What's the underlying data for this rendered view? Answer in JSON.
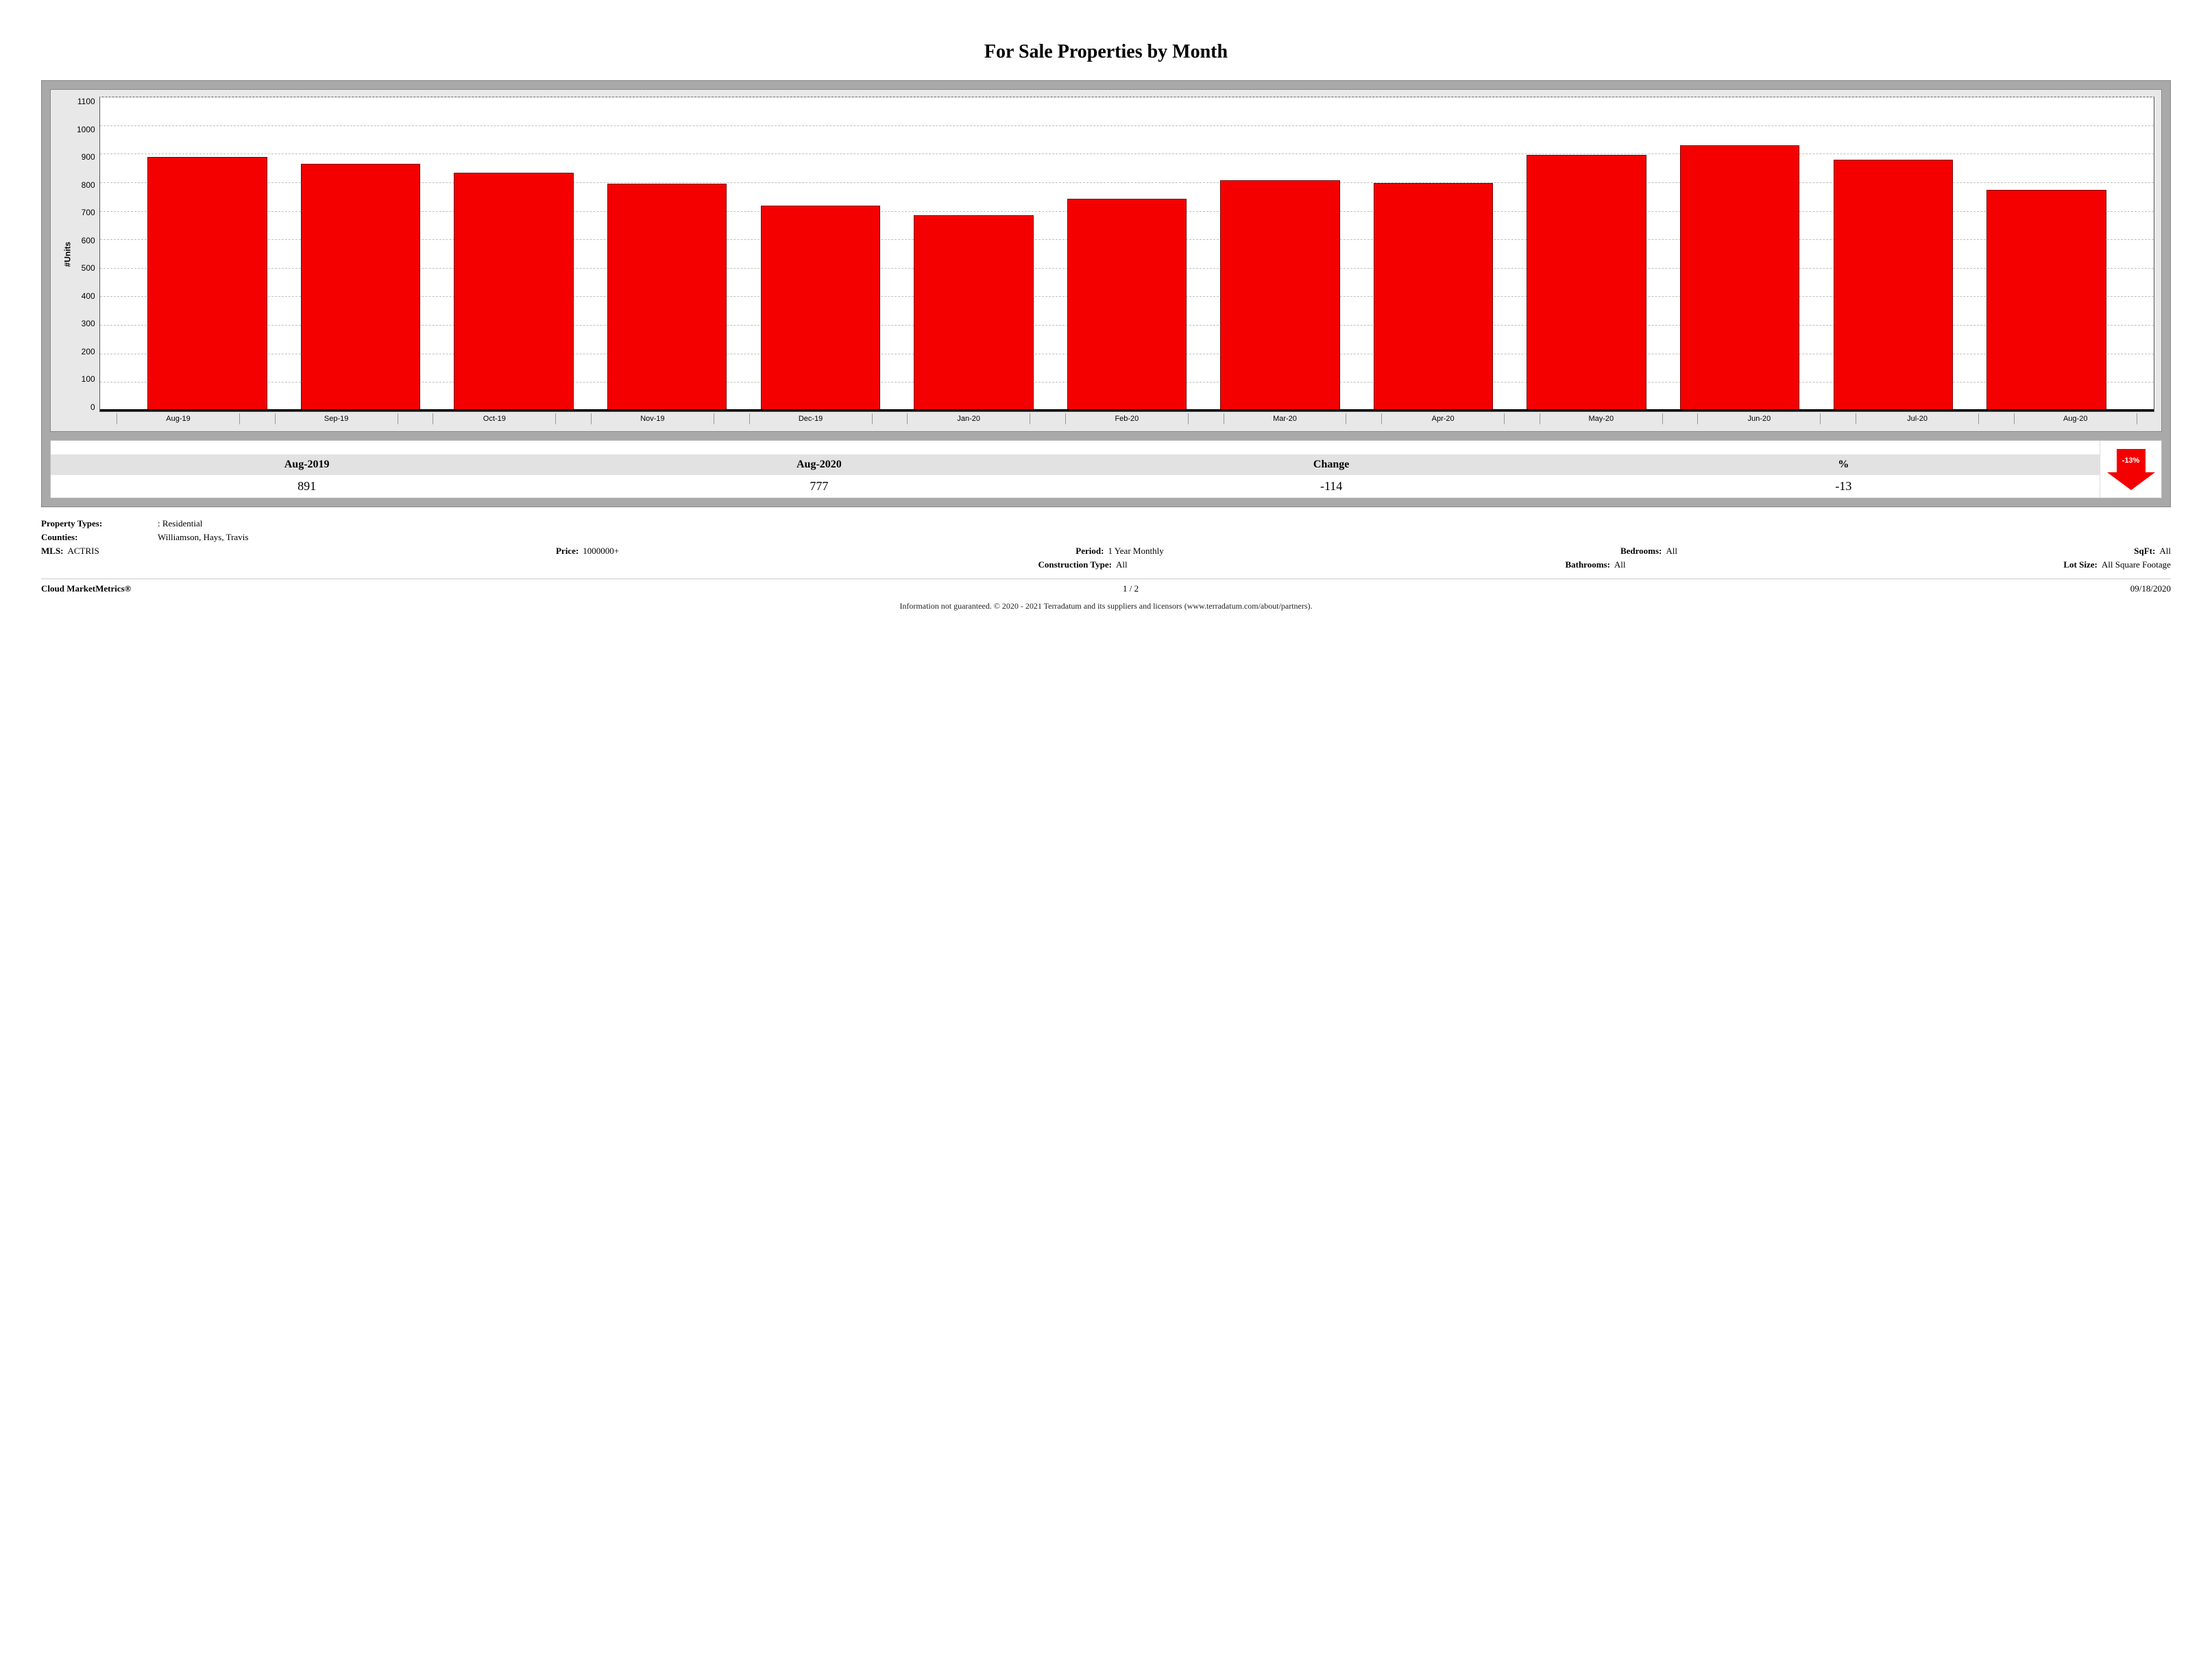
{
  "title": "For Sale Properties by Month",
  "chart": {
    "type": "bar",
    "ylabel": "#Units",
    "ylim": [
      0,
      1100
    ],
    "ytick_step": 100,
    "yticks": [
      1100,
      1000,
      900,
      800,
      700,
      600,
      500,
      400,
      300,
      200,
      100,
      0
    ],
    "categories": [
      "Aug-19",
      "Sep-19",
      "Oct-19",
      "Nov-19",
      "Dec-19",
      "Jan-20",
      "Feb-20",
      "Mar-20",
      "Apr-20",
      "May-20",
      "Jun-20",
      "Jul-20",
      "Aug-20"
    ],
    "values": [
      891,
      868,
      835,
      798,
      720,
      688,
      745,
      810,
      800,
      898,
      932,
      882,
      777
    ],
    "bar_color": "#f40000",
    "bar_border_color": "#7a0000",
    "bar_width": 0.78,
    "background_color": "#ffffff",
    "panel_background": "#e8e8e8",
    "outer_background": "#a9a9a9",
    "grid_color": "#bfbfbf",
    "grid_dashed": true,
    "label_fontsize": 12,
    "tick_fontsize": 11
  },
  "summary": {
    "headers": [
      "Aug-2019",
      "Aug-2020",
      "Change",
      "%"
    ],
    "values": [
      "891",
      "777",
      "-114",
      "-13"
    ],
    "arrow": {
      "direction": "down",
      "label": "-13%",
      "color": "#f40000"
    }
  },
  "filters": {
    "property_types_label": "Property Types:",
    "property_types": ": Residential",
    "counties_label": "Counties:",
    "counties": "Williamson, Hays, Travis",
    "mls_label": "MLS:",
    "mls": "ACTRIS",
    "price_label": "Price:",
    "price": "1000000+",
    "period_label": "Period:",
    "period": "1 Year Monthly",
    "bedrooms_label": "Bedrooms:",
    "bedrooms": "All",
    "sqft_label": "SqFt:",
    "sqft": "All",
    "construction_label": "Construction Type:",
    "construction": "All",
    "bathrooms_label": "Bathrooms:",
    "bathrooms": "All",
    "lotsize_label": "Lot Size:",
    "lotsize": "All Square Footage"
  },
  "footer": {
    "brand": "Cloud MarketMetrics®",
    "page": "1 / 2",
    "date": "09/18/2020",
    "disclaimer": "Information not guaranteed. © 2020 - 2021 Terradatum and its suppliers and licensors (www.terradatum.com/about/partners)."
  }
}
